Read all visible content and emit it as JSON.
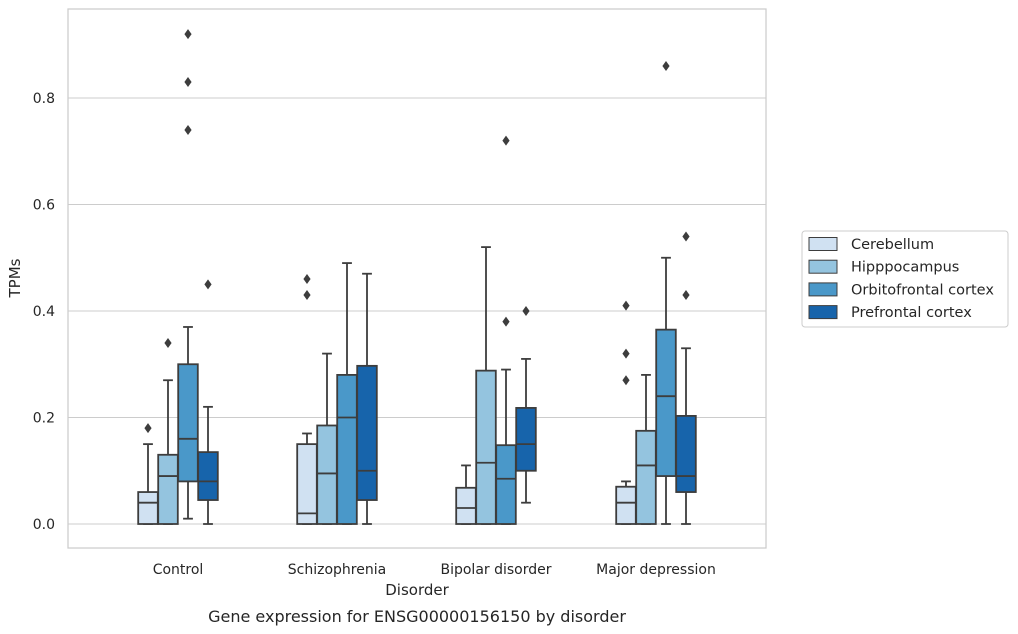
{
  "chart_data": {
    "type": "box",
    "title": "",
    "caption": "Gene expression for ENSG00000156150 by disorder",
    "xlabel": "Disorder",
    "ylabel": "TPMs",
    "ylim": [
      -0.045,
      0.97
    ],
    "yticks": [
      0.0,
      0.2,
      0.4,
      0.6,
      0.8
    ],
    "ytick_labels": [
      "0.0",
      "0.2",
      "0.4",
      "0.6",
      "0.8"
    ],
    "grid": "horizontal",
    "legend_position": "right",
    "categories": [
      "Control",
      "Schizophrenia",
      "Bipolar disorder",
      "Major depression"
    ],
    "series": [
      {
        "name": "Cerebellum",
        "color": "#d0e1f2",
        "boxes": [
          {
            "whisker_low": 0.0,
            "q1": 0.0,
            "median": 0.04,
            "q3": 0.06,
            "whisker_high": 0.15,
            "outliers": [
              0.18
            ]
          },
          {
            "whisker_low": 0.0,
            "q1": 0.0,
            "median": 0.02,
            "q3": 0.15,
            "whisker_high": 0.17,
            "outliers": [
              0.43,
              0.46
            ]
          },
          {
            "whisker_low": 0.0,
            "q1": 0.0,
            "median": 0.03,
            "q3": 0.068,
            "whisker_high": 0.11,
            "outliers": []
          },
          {
            "whisker_low": 0.0,
            "q1": 0.0,
            "median": 0.04,
            "q3": 0.07,
            "whisker_high": 0.08,
            "outliers": [
              0.27,
              0.32,
              0.41
            ]
          }
        ]
      },
      {
        "name": "Hipppocampus",
        "color": "#94c4df",
        "boxes": [
          {
            "whisker_low": 0.0,
            "q1": 0.0,
            "median": 0.09,
            "q3": 0.13,
            "whisker_high": 0.27,
            "outliers": [
              0.34
            ]
          },
          {
            "whisker_low": 0.0,
            "q1": 0.0,
            "median": 0.095,
            "q3": 0.185,
            "whisker_high": 0.32,
            "outliers": []
          },
          {
            "whisker_low": 0.0,
            "q1": 0.0,
            "median": 0.115,
            "q3": 0.288,
            "whisker_high": 0.52,
            "outliers": []
          },
          {
            "whisker_low": 0.0,
            "q1": 0.0,
            "median": 0.11,
            "q3": 0.175,
            "whisker_high": 0.28,
            "outliers": []
          }
        ]
      },
      {
        "name": "Orbitofrontal cortex",
        "color": "#4a98c9",
        "boxes": [
          {
            "whisker_low": 0.01,
            "q1": 0.08,
            "median": 0.16,
            "q3": 0.3,
            "whisker_high": 0.37,
            "outliers": [
              0.74,
              0.83,
              0.92
            ]
          },
          {
            "whisker_low": 0.0,
            "q1": 0.0,
            "median": 0.2,
            "q3": 0.28,
            "whisker_high": 0.49,
            "outliers": []
          },
          {
            "whisker_low": 0.0,
            "q1": 0.0,
            "median": 0.085,
            "q3": 0.148,
            "whisker_high": 0.29,
            "outliers": [
              0.38,
              0.72
            ]
          },
          {
            "whisker_low": 0.0,
            "q1": 0.09,
            "median": 0.24,
            "q3": 0.365,
            "whisker_high": 0.5,
            "outliers": [
              0.86
            ]
          }
        ]
      },
      {
        "name": "Prefrontal cortex",
        "color": "#1764ab",
        "boxes": [
          {
            "whisker_low": 0.0,
            "q1": 0.045,
            "median": 0.08,
            "q3": 0.135,
            "whisker_high": 0.22,
            "outliers": [
              0.45
            ]
          },
          {
            "whisker_low": 0.0,
            "q1": 0.045,
            "median": 0.1,
            "q3": 0.297,
            "whisker_high": 0.47,
            "outliers": []
          },
          {
            "whisker_low": 0.04,
            "q1": 0.1,
            "median": 0.15,
            "q3": 0.218,
            "whisker_high": 0.31,
            "outliers": [
              0.4
            ]
          },
          {
            "whisker_low": 0.0,
            "q1": 0.06,
            "median": 0.09,
            "q3": 0.203,
            "whisker_high": 0.33,
            "outliers": [
              0.43,
              0.54
            ]
          }
        ]
      }
    ]
  }
}
